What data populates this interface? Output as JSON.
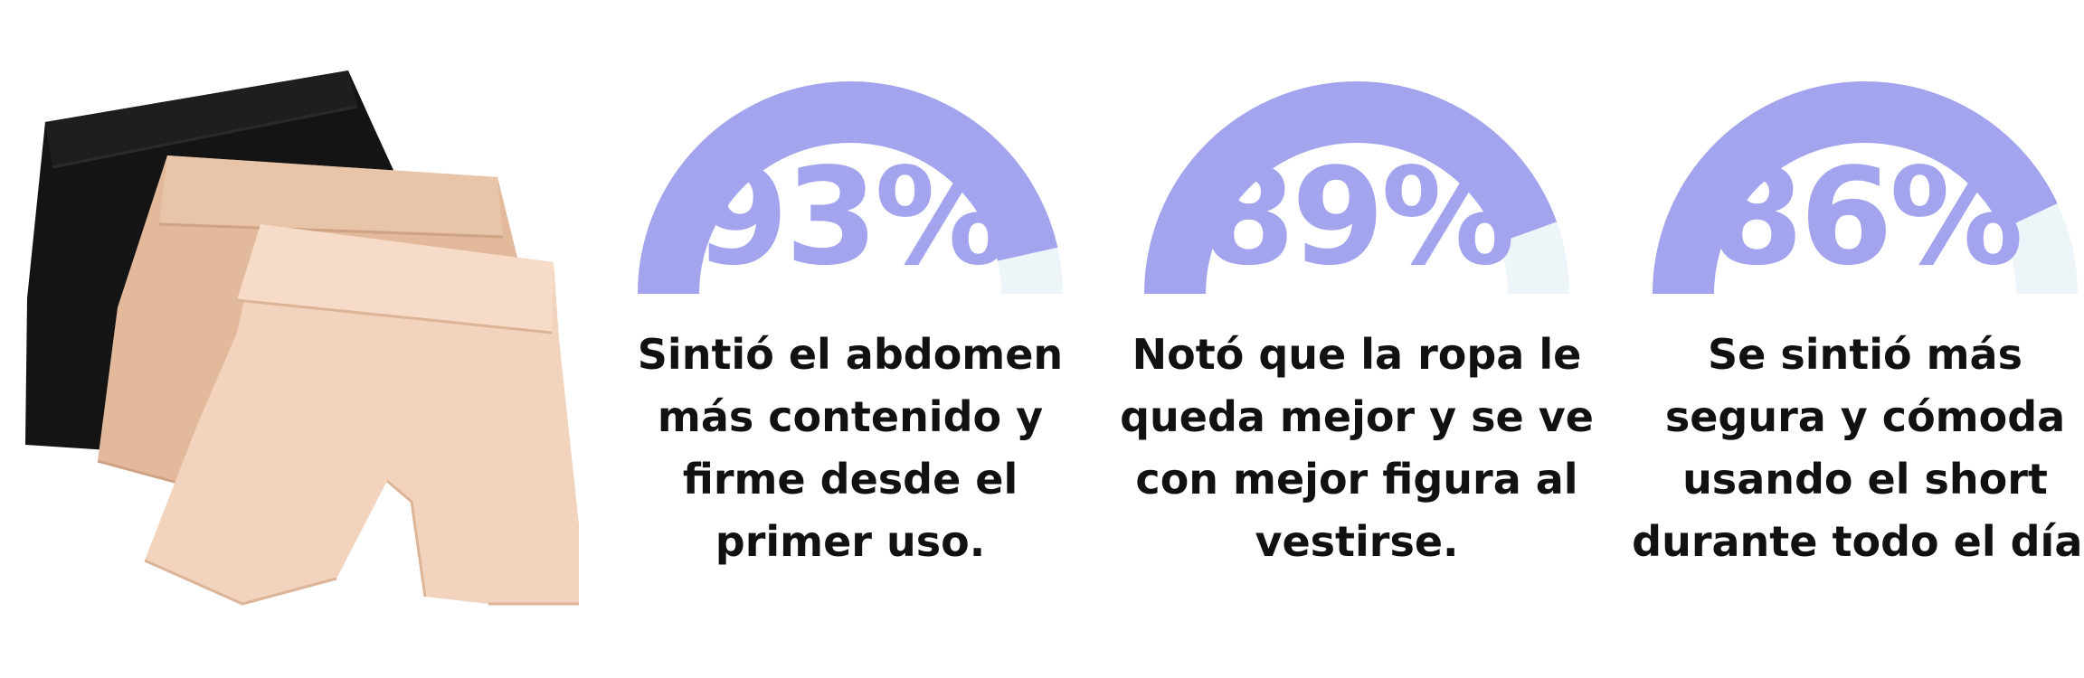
{
  "colors": {
    "gauge_fill": "#a3a3ee",
    "gauge_track": "#eef5f9",
    "text": "#111111"
  },
  "product": {
    "image": "three-shapewear-shorts-black-and-nude"
  },
  "stats": [
    {
      "percent_label": "93%",
      "value": 0.93,
      "caption": "Sintió el abdomen\nmás contenido y\nfirme desde el\nprimer uso."
    },
    {
      "percent_label": "89%",
      "value": 0.89,
      "caption": "Notó que la ropa le\nqueda mejor y se ve\ncon mejor figura al\nvestirse."
    },
    {
      "percent_label": "86%",
      "value": 0.86,
      "caption": "Se sintió más\nsegura y cómoda\nusando el short\ndurante todo el día."
    }
  ]
}
